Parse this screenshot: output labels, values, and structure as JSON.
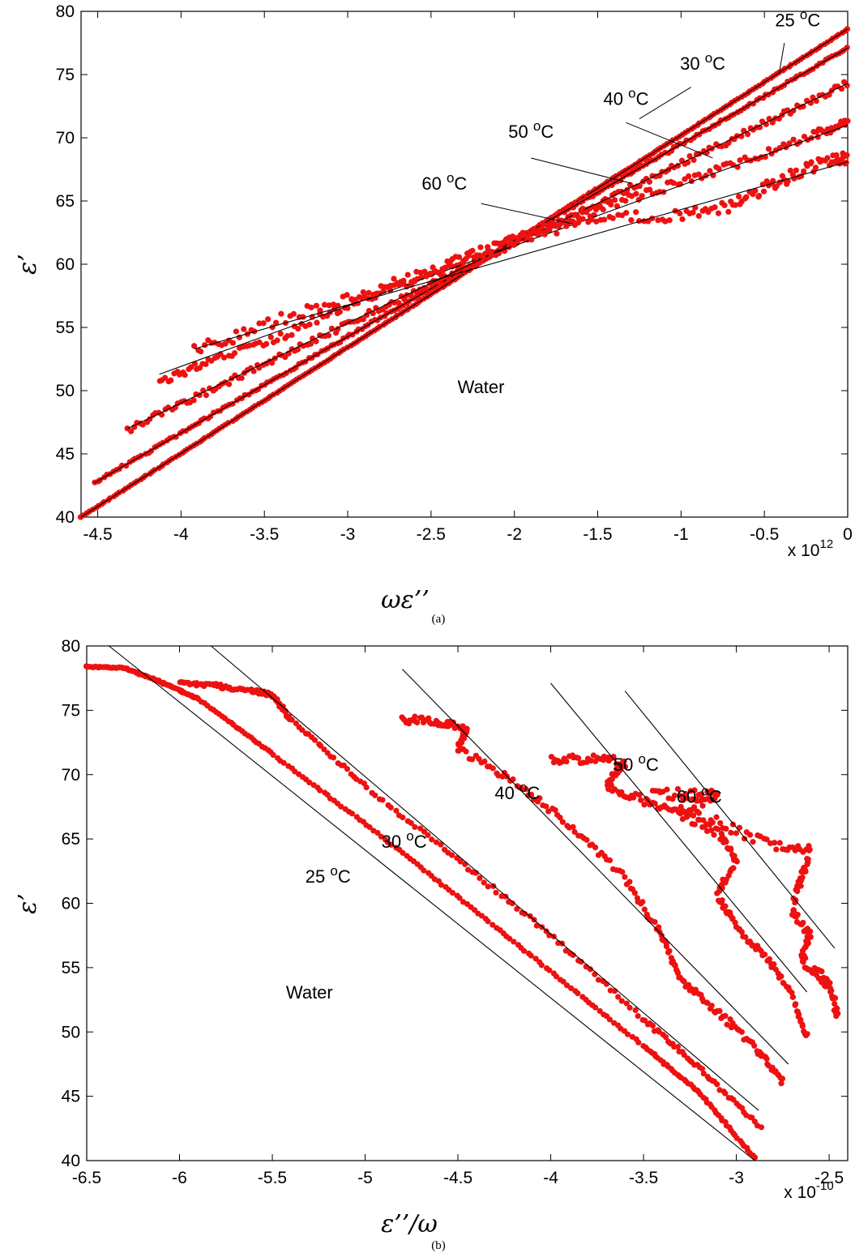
{
  "chart_data": [
    {
      "type": "scatter",
      "panel_label": "(a)",
      "xlabel": "ωε’’",
      "ylabel": "ε’",
      "x_exponent_label": {
        "base": "x 10",
        "power": "12"
      },
      "xlim": [
        -4.6,
        0.0
      ],
      "ylim": [
        40,
        80
      ],
      "xticks": [
        -4.5,
        -4,
        -3.5,
        -3,
        -2.5,
        -2,
        -1.5,
        -1,
        -0.5,
        0
      ],
      "xtick_labels": [
        "-4.5",
        "-4",
        "-3.5",
        "-3",
        "-2.5",
        "-2",
        "-1.5",
        "-1",
        "-0.5",
        "0"
      ],
      "yticks": [
        40,
        45,
        50,
        55,
        60,
        65,
        70,
        75,
        80
      ],
      "ytick_labels": [
        "40",
        "45",
        "50",
        "55",
        "60",
        "65",
        "70",
        "75",
        "80"
      ],
      "annotations": [
        {
          "text": "Water",
          "x": -2.2,
          "y": 49.8
        },
        {
          "text": "25 ",
          "sup": "o",
          "tail": "C",
          "x": -0.3,
          "y": 78.8,
          "lx1": -0.38,
          "ly1": 77.5,
          "lx2": -0.41,
          "ly2": 75.2
        },
        {
          "text": "30 ",
          "sup": "o",
          "tail": "C",
          "x": -0.87,
          "y": 75.4,
          "lx1": -0.94,
          "ly1": 74.0,
          "lx2": -1.25,
          "ly2": 71.5
        },
        {
          "text": "40 ",
          "sup": "o",
          "tail": "C",
          "x": -1.33,
          "y": 72.6,
          "lx1": -1.33,
          "ly1": 71.2,
          "lx2": -0.81,
          "ly2": 68.4
        },
        {
          "text": "50 ",
          "sup": "o",
          "tail": "C",
          "x": -1.9,
          "y": 70.0,
          "lx1": -1.9,
          "ly1": 68.4,
          "lx2": -1.3,
          "ly2": 66.4
        },
        {
          "text": "60 ",
          "sup": "o",
          "tail": "C",
          "x": -2.42,
          "y": 65.9,
          "lx1": -2.2,
          "ly1": 64.8,
          "lx2": -1.65,
          "ly2": 63.2
        }
      ],
      "series": [
        {
          "name": "25 °C",
          "fit": {
            "x": [
              -4.6,
              0.0
            ],
            "y": [
              40.0,
              78.6
            ]
          },
          "wobble": 0.0,
          "points": {
            "x": [
              -4.6,
              0.0
            ],
            "y": [
              40.0,
              78.6
            ],
            "n": 260
          }
        },
        {
          "name": "30 °C",
          "fit": {
            "x": [
              -4.52,
              0.0
            ],
            "y": [
              42.7,
              77.1
            ]
          },
          "wobble": 0.1,
          "points": {
            "x": [
              -4.52,
              0.0
            ],
            "y": [
              42.7,
              77.1
            ],
            "n": 240
          }
        },
        {
          "name": "40 °C",
          "fit": {
            "x": [
              -4.32,
              0.0
            ],
            "y": [
              47.0,
              74.3
            ]
          },
          "wobble": 0.25,
          "points": {
            "x": [
              -4.32,
              0.0
            ],
            "y": [
              46.9,
              74.3
            ],
            "n": 230
          }
        },
        {
          "name": "50 °C",
          "fit": {
            "x": [
              -4.13,
              0.0
            ],
            "y": [
              51.3,
              71.0
            ]
          },
          "wobble": 0.35,
          "points": {
            "x": [
              -4.13,
              -3.8,
              -3.4,
              -3.0,
              -2.6,
              -2.2,
              -1.8,
              -1.4,
              -1.0,
              -0.6,
              -0.2,
              0.0
            ],
            "y": [
              50.6,
              52.6,
              54.3,
              56.8,
              58.7,
              61.0,
              62.9,
              64.8,
              66.5,
              68.3,
              70.3,
              71.2
            ],
            "n": 210
          }
        },
        {
          "name": "60 °C",
          "fit": {
            "x": [
              -3.92,
              0.0
            ],
            "y": [
              53.3,
              68.1
            ]
          },
          "wobble": 0.5,
          "points": {
            "x": [
              -3.92,
              -3.6,
              -3.2,
              -2.8,
              -2.5,
              -2.2,
              -1.8,
              -1.4,
              -1.0,
              -0.7,
              -0.5,
              -0.3,
              -0.1,
              0.0
            ],
            "y": [
              53.3,
              54.6,
              56.6,
              58.2,
              59.3,
              60.9,
              62.7,
              63.7,
              63.8,
              64.6,
              66.0,
              67.3,
              68.2,
              68.4
            ],
            "n": 200
          }
        }
      ]
    },
    {
      "type": "scatter",
      "panel_label": "(b)",
      "xlabel": "ε’’/ω",
      "ylabel": "ε’",
      "x_exponent_label": {
        "base": "x 10",
        "power": "-10"
      },
      "xlim": [
        -6.5,
        -2.4
      ],
      "ylim": [
        40,
        80
      ],
      "xticks": [
        -6.5,
        -6,
        -5.5,
        -5,
        -4.5,
        -4,
        -3.5,
        -3,
        -2.5
      ],
      "xtick_labels": [
        "-6.5",
        "-6",
        "-5.5",
        "-5",
        "-4.5",
        "-4",
        "-3.5",
        "-3",
        "-2.5"
      ],
      "yticks": [
        40,
        45,
        50,
        55,
        60,
        65,
        70,
        75,
        80
      ],
      "ytick_labels": [
        "40",
        "45",
        "50",
        "55",
        "60",
        "65",
        "70",
        "75",
        "80"
      ],
      "annotations": [
        {
          "text": "Water",
          "x": -5.3,
          "y": 52.6
        },
        {
          "text": "25 ",
          "sup": "o",
          "tail": "C",
          "x": -5.2,
          "y": 61.6
        },
        {
          "text": "30 ",
          "sup": "o",
          "tail": "C",
          "x": -4.79,
          "y": 64.3
        },
        {
          "text": "40 ",
          "sup": "o",
          "tail": "C",
          "x": -4.18,
          "y": 68.1
        },
        {
          "text": "50 ",
          "sup": "o",
          "tail": "C",
          "x": -3.54,
          "y": 70.3
        },
        {
          "text": "60 ",
          "sup": "o",
          "tail": "C",
          "x": -3.2,
          "y": 67.8
        }
      ],
      "series": [
        {
          "name": "25 °C",
          "fit": {
            "x": [
              -6.38,
              -2.9
            ],
            "y": [
              80.0,
              40.0
            ]
          },
          "wobble": 0.05,
          "points": {
            "x": [
              -6.5,
              -6.3,
              -6.1,
              -5.9,
              -5.5,
              -5.0,
              -4.5,
              -4.0,
              -3.5,
              -3.2,
              -2.9
            ],
            "y": [
              78.4,
              78.3,
              77.2,
              75.9,
              71.6,
              66.2,
              60.5,
              54.7,
              48.9,
              45.3,
              40.2
            ],
            "n": 260
          }
        },
        {
          "name": "30 °C",
          "fit": {
            "x": [
              -5.83,
              -2.88
            ],
            "y": [
              80.0,
              43.9
            ]
          },
          "wobble": 0.15,
          "points": {
            "x": [
              -6.0,
              -5.8,
              -5.6,
              -5.5,
              -5.4,
              -5.0,
              -4.5,
              -4.0,
              -3.5,
              -3.2,
              -2.87
            ],
            "y": [
              77.1,
              76.9,
              76.5,
              76.2,
              74.3,
              69.1,
              63.4,
              57.5,
              51.0,
              47.2,
              42.6
            ],
            "n": 230
          }
        },
        {
          "name": "40 °C",
          "fit": {
            "x": [
              -4.8,
              -2.72
            ],
            "y": [
              78.2,
              47.5
            ]
          },
          "wobble": 0.3,
          "points": {
            "x": [
              -4.8,
              -4.6,
              -4.45,
              -4.5,
              -4.2,
              -3.9,
              -3.6,
              -3.4,
              -3.3,
              -3.1,
              -2.9,
              -2.75
            ],
            "y": [
              74.3,
              74.1,
              73.5,
              72.0,
              69.5,
              66.1,
              62.0,
              57.5,
              54.0,
              51.6,
              48.8,
              46.1
            ],
            "n": 210
          }
        },
        {
          "name": "50 °C",
          "fit": {
            "x": [
              -4.0,
              -2.62
            ],
            "y": [
              77.1,
              53.1
            ]
          },
          "wobble": 0.35,
          "points": {
            "x": [
              -4.0,
              -3.8,
              -3.6,
              -3.7,
              -3.5,
              -3.3,
              -3.1,
              -3.0,
              -3.1,
              -3.0,
              -2.85,
              -2.7,
              -2.62
            ],
            "y": [
              71.2,
              71.2,
              71.0,
              69.2,
              68.0,
              67.0,
              65.5,
              63.5,
              60.7,
              58.0,
              56.0,
              53.0,
              49.5
            ],
            "n": 190
          }
        },
        {
          "name": "60 °C",
          "fit": {
            "x": [
              -3.6,
              -2.47
            ],
            "y": [
              76.5,
              56.5
            ]
          },
          "wobble": 0.45,
          "points": {
            "x": [
              -3.45,
              -3.25,
              -3.1,
              -3.3,
              -3.05,
              -2.8,
              -2.6,
              -2.65,
              -2.7,
              -2.6,
              -2.65,
              -2.55,
              -2.5,
              -2.45
            ],
            "y": [
              68.5,
              68.4,
              68.4,
              67.2,
              66.0,
              64.5,
              64.0,
              62.0,
              59.5,
              57.5,
              55.5,
              54.5,
              53.5,
              51.3
            ],
            "n": 180
          }
        }
      ]
    }
  ]
}
